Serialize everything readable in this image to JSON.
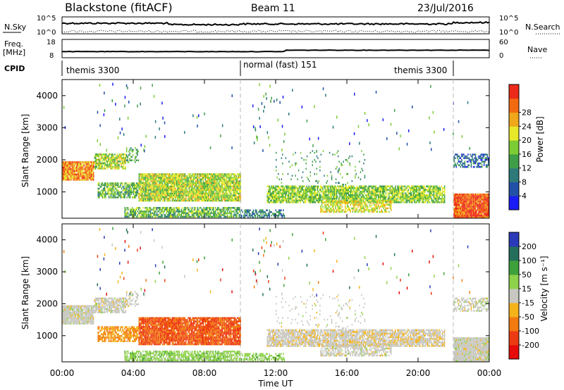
{
  "header": {
    "station": "Blackstone (fitACF)",
    "beam": "Beam 11",
    "date": "23/Jul/2016"
  },
  "top_panels": {
    "nsky_label": "N.Sky",
    "nsky_ticks": [
      "10^5",
      "10^0"
    ],
    "nsearch_label": "N.Search",
    "nsearch_ticks": [
      "10^5",
      "10^0"
    ],
    "freq_label": "Freq.",
    "freq_unit": "[MHz]",
    "freq_ticks": [
      "18",
      "8"
    ],
    "nave_label": "Nave",
    "nave_ticks": [
      "60",
      "0"
    ],
    "cpid_label": "CPID",
    "cpid_segments": [
      {
        "label": "themis 3300",
        "start_h": 0,
        "end_h": 10
      },
      {
        "label": "normal (fast) 151",
        "start_h": 10,
        "end_h": 22
      },
      {
        "label": "themis 3300",
        "start_h": 22,
        "end_h": 24
      }
    ],
    "cpid_inner_label": "themis 3300"
  },
  "chart_data": [
    {
      "type": "heatmap",
      "title": "",
      "ylabel": "Slant Range [km]",
      "xlabel": "",
      "xlim": [
        0,
        24
      ],
      "ylim": [
        180,
        4500
      ],
      "yticks": [
        "1000",
        "2000",
        "3000",
        "4000"
      ],
      "colorbar": {
        "label": "Power [dB]",
        "ticks": [
          "4",
          "8",
          "12",
          "16",
          "20",
          "24",
          "28"
        ],
        "range": [
          0,
          30
        ],
        "colors": [
          "#1b1bf5",
          "#2250a8",
          "#2e7a7a",
          "#3f9e48",
          "#7ccc33",
          "#e8e82a",
          "#f0a81a",
          "#f26a10",
          "#ec2a1a"
        ]
      }
    },
    {
      "type": "heatmap",
      "title": "",
      "ylabel": "Slant Range [km]",
      "xlabel": "Time UT",
      "xlim": [
        0,
        24
      ],
      "ylim": [
        180,
        4500
      ],
      "yticks": [
        "1000",
        "2000",
        "3000",
        "4000"
      ],
      "xticks": [
        "00:00",
        "04:00",
        "08:00",
        "12:00",
        "16:00",
        "20:00",
        "00:00"
      ],
      "colorbar": {
        "label": "Velocity [m s⁻¹]",
        "ticks": [
          "200",
          "100",
          "50",
          "15",
          "-15",
          "-50",
          "-100",
          "-200"
        ],
        "colors": [
          "#2a3ab8",
          "#246e5c",
          "#3ea03a",
          "#8ed14a",
          "#c8c8c0",
          "#f5b31a",
          "#f27a10",
          "#ec3a12",
          "#e60a0a"
        ]
      }
    }
  ]
}
